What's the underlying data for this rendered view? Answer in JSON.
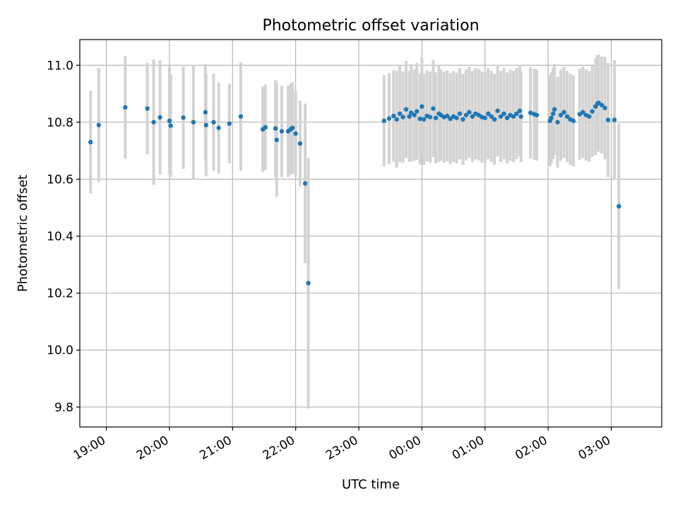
{
  "chart_data": {
    "type": "scatter",
    "title": "Photometric offset variation",
    "xlabel": "UTC time",
    "ylabel": "Photometric offset",
    "grid": true,
    "colors": {
      "points": "#1f77b4",
      "errorbars": "#d3d3d3"
    },
    "x_tick_labels": [
      "19:00",
      "20:00",
      "21:00",
      "22:00",
      "23:00",
      "00:00",
      "01:00",
      "02:00",
      "03:00"
    ],
    "y_tick_labels": [
      "9.8",
      "10.0",
      "10.2",
      "10.4",
      "10.6",
      "10.8",
      "11.0"
    ],
    "ylim": [
      9.73,
      11.09
    ],
    "xlim_hours": [
      18.58,
      27.8
    ],
    "x_hours": [
      18.75,
      18.88,
      19.3,
      19.65,
      19.75,
      19.85,
      20.0,
      20.02,
      20.22,
      20.38,
      20.57,
      20.58,
      20.7,
      20.78,
      20.95,
      21.13,
      21.48,
      21.52,
      21.68,
      21.7,
      21.78,
      21.88,
      21.92,
      21.95,
      22.0,
      22.07,
      22.15,
      22.2,
      23.4,
      23.48,
      23.55,
      23.6,
      23.65,
      23.7,
      23.75,
      23.8,
      23.83,
      23.88,
      23.92,
      23.97,
      24.0,
      24.03,
      24.08,
      24.13,
      24.18,
      24.22,
      24.27,
      24.3,
      24.35,
      24.4,
      24.45,
      24.5,
      24.55,
      24.6,
      24.65,
      24.7,
      24.75,
      24.8,
      24.85,
      24.9,
      24.95,
      25.0,
      25.05,
      25.1,
      25.15,
      25.2,
      25.25,
      25.3,
      25.35,
      25.4,
      25.45,
      25.5,
      25.55,
      25.57,
      25.72,
      25.78,
      25.82,
      26.03,
      26.05,
      26.08,
      26.1,
      26.15,
      26.2,
      26.25,
      26.3,
      26.35,
      26.4,
      26.5,
      26.55,
      26.6,
      26.65,
      26.7,
      26.75,
      26.78,
      26.8,
      26.85,
      26.9,
      26.95,
      27.05,
      27.12
    ],
    "y_values": [
      10.73,
      10.79,
      10.852,
      10.848,
      10.8,
      10.817,
      10.805,
      10.788,
      10.816,
      10.8,
      10.835,
      10.79,
      10.8,
      10.78,
      10.795,
      10.82,
      10.775,
      10.782,
      10.778,
      10.738,
      10.768,
      10.768,
      10.775,
      10.78,
      10.76,
      10.725,
      10.585,
      10.235,
      10.805,
      10.813,
      10.822,
      10.81,
      10.83,
      10.818,
      10.845,
      10.82,
      10.833,
      10.825,
      10.838,
      10.812,
      10.855,
      10.81,
      10.822,
      10.818,
      10.848,
      10.815,
      10.83,
      10.825,
      10.818,
      10.822,
      10.812,
      10.82,
      10.815,
      10.83,
      10.81,
      10.825,
      10.835,
      10.82,
      10.83,
      10.825,
      10.818,
      10.815,
      10.83,
      10.82,
      10.81,
      10.84,
      10.82,
      10.83,
      10.815,
      10.825,
      10.82,
      10.83,
      10.84,
      10.82,
      10.833,
      10.828,
      10.825,
      10.805,
      10.815,
      10.83,
      10.845,
      10.8,
      10.825,
      10.835,
      10.82,
      10.81,
      10.805,
      10.828,
      10.835,
      10.825,
      10.82,
      10.838,
      10.855,
      10.865,
      10.868,
      10.86,
      10.85,
      10.808,
      10.808,
      10.505
    ],
    "y_errors": [
      0.18,
      0.2,
      0.18,
      0.16,
      0.22,
      0.2,
      0.19,
      0.18,
      0.18,
      0.2,
      0.17,
      0.18,
      0.17,
      0.16,
      0.14,
      0.19,
      0.15,
      0.15,
      0.17,
      0.2,
      0.16,
      0.16,
      0.16,
      0.16,
      0.15,
      0.15,
      0.28,
      0.44,
      0.16,
      0.16,
      0.16,
      0.17,
      0.17,
      0.16,
      0.17,
      0.16,
      0.17,
      0.16,
      0.17,
      0.16,
      0.17,
      0.16,
      0.16,
      0.16,
      0.17,
      0.16,
      0.17,
      0.16,
      0.16,
      0.16,
      0.16,
      0.16,
      0.16,
      0.16,
      0.16,
      0.16,
      0.16,
      0.16,
      0.16,
      0.16,
      0.16,
      0.16,
      0.16,
      0.16,
      0.16,
      0.16,
      0.16,
      0.16,
      0.16,
      0.16,
      0.16,
      0.16,
      0.16,
      0.16,
      0.16,
      0.16,
      0.16,
      0.16,
      0.16,
      0.16,
      0.16,
      0.16,
      0.16,
      0.16,
      0.16,
      0.16,
      0.16,
      0.16,
      0.16,
      0.16,
      0.16,
      0.16,
      0.17,
      0.17,
      0.17,
      0.17,
      0.18,
      0.2,
      0.21,
      0.29
    ]
  }
}
